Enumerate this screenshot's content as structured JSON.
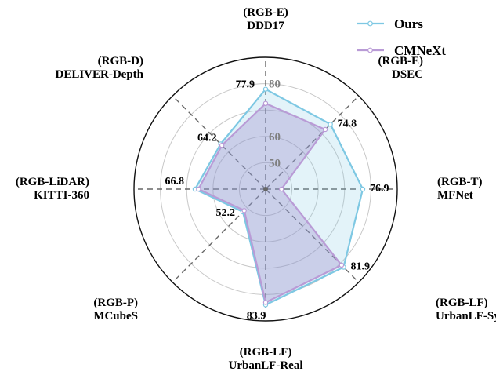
{
  "chart_data": {
    "type": "radar",
    "axes": [
      {
        "line1": "(RGB-E)",
        "line2": "DDD17"
      },
      {
        "line1": "(RGB-E)",
        "line2": "DSEC"
      },
      {
        "line1": "(RGB-T)",
        "line2": "MFNet"
      },
      {
        "line1": "(RGB-LF)",
        "line2": "UrbanLF-Syn"
      },
      {
        "line1": "(RGB-LF)",
        "line2": "UrbanLF-Real"
      },
      {
        "line1": "(RGB-P)",
        "line2": "MCubeS"
      },
      {
        "line1": "(RGB-LiDAR)",
        "line2": "KITTI-360"
      },
      {
        "line1": "(RGB-D)",
        "line2": "DELIVER-Depth"
      }
    ],
    "radial_ticks": [
      "50",
      "60",
      "80"
    ],
    "value_labels": [
      "77.9",
      "74.8",
      "76.9",
      "81.9",
      "83.9",
      "52.2",
      "66.8",
      "64.2"
    ],
    "series": [
      {
        "name": "Ours",
        "color": "#7ec8e3",
        "values": [
          77.9,
          74.8,
          76.9,
          81.9,
          83.9,
          52.2,
          66.8,
          64.2
        ]
      },
      {
        "name": "CMNeXt",
        "color": "#b99bd6",
        "values": [
          72.5,
          72.0,
          46.0,
          80.8,
          83.0,
          51.5,
          65.5,
          63.5
        ]
      }
    ],
    "legend_position": "top-right"
  }
}
